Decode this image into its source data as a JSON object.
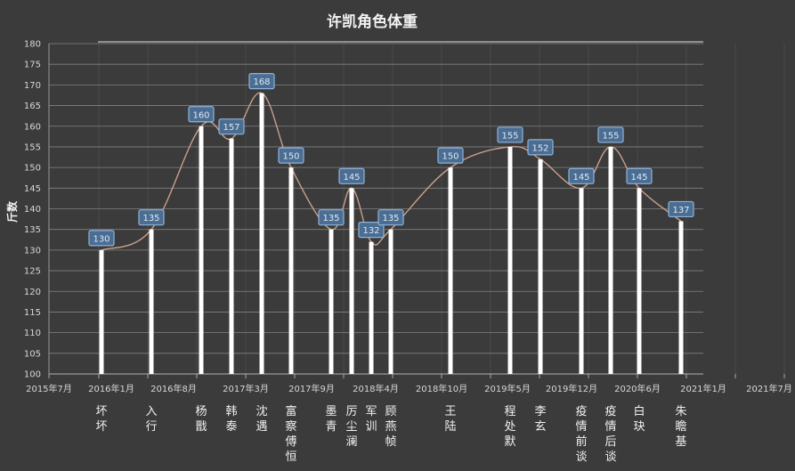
{
  "chart_data": {
    "type": "bar",
    "title": "许凯角色体重",
    "xlabel": "",
    "ylabel": "斤数",
    "ylim": [
      100,
      180
    ],
    "ystep": 5,
    "yticks": [
      "100",
      "105",
      "110",
      "115",
      "120",
      "125",
      "130",
      "135",
      "140",
      "145",
      "150",
      "155",
      "160",
      "165",
      "170",
      "175",
      "180"
    ],
    "xticks": [
      "2015年7月",
      "2016年1月",
      "2016年8月",
      "2017年3月",
      "2017年9月",
      "2018年4月",
      "2018年10月",
      "2019年5月",
      "2019年12月",
      "2020年6月",
      "2021年1月",
      "2021年7月"
    ],
    "categories": [
      "坏坏",
      "入行",
      "杨戬",
      "韩泰",
      "沈遇",
      "富察傅恒",
      "墨青",
      "厉尘澜",
      "军训",
      "顾燕帧",
      "王陆",
      "程处默",
      "李玄",
      "疫情前谈",
      "疫情后谈",
      "白玦",
      "朱瞻基"
    ],
    "values": [
      130,
      135,
      160,
      157,
      168,
      150,
      135,
      145,
      132,
      135,
      150,
      155,
      152,
      145,
      155,
      145,
      137
    ],
    "grid": true,
    "colors": {
      "background": "#3b3b3b",
      "bar": "#ffffff",
      "line": "#c9a08c",
      "label_box": "#4b6d92",
      "label_border": "#8fb3da",
      "grid": "#bdbdbd"
    }
  }
}
